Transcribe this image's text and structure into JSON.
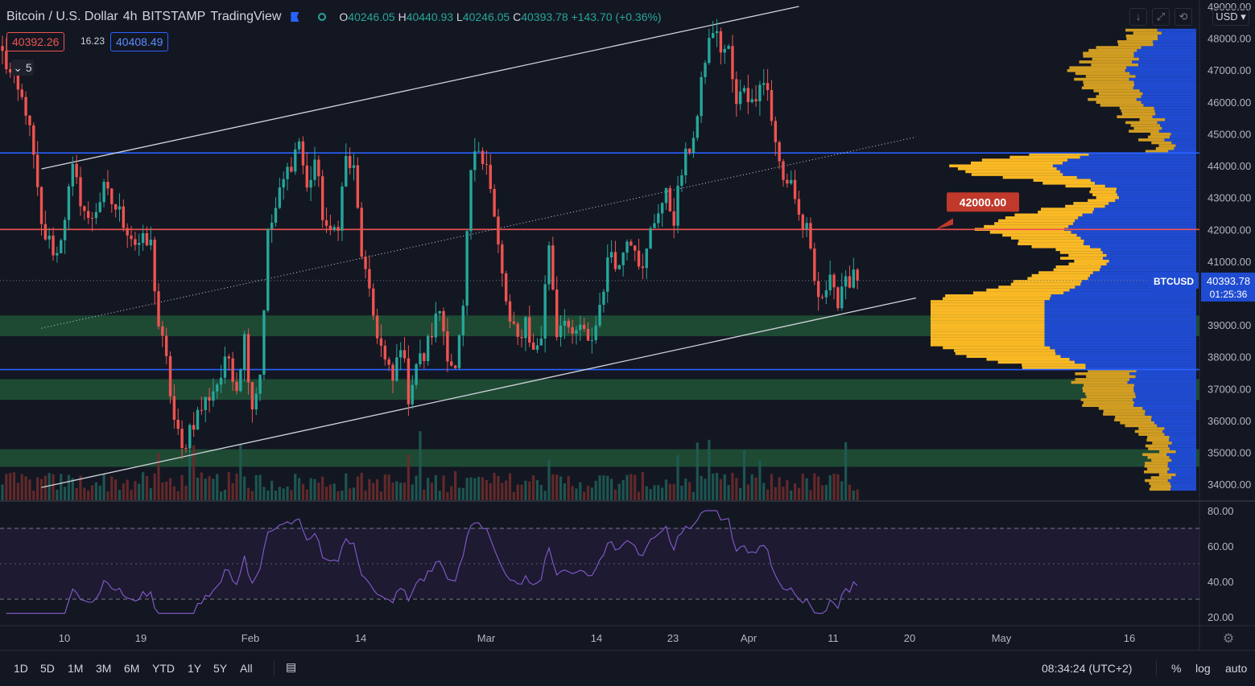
{
  "header": {
    "symbol": "Bitcoin / U.S. Dollar",
    "interval": "4h",
    "exchange": "BITSTAMP",
    "source": "TradingView",
    "ohlc": {
      "o_label": "O",
      "o": "40246.05",
      "h_label": "H",
      "h": "40440.93",
      "l_label": "L",
      "l": "40246.05",
      "c_label": "C",
      "c": "40393.78",
      "change": "+143.70 (+0.36%)"
    },
    "sell_price": "40392.26",
    "spread": "16.23",
    "buy_price": "40408.49",
    "collapse_count": "5"
  },
  "toolbar": {
    "currency": "USD",
    "icons": [
      "arrow-down-icon",
      "maximize-icon",
      "settings-icon"
    ]
  },
  "bottom_bar": {
    "ranges": [
      "1D",
      "5D",
      "1M",
      "3M",
      "6M",
      "YTD",
      "1Y",
      "5Y",
      "All"
    ],
    "clock": "08:34:24 (UTC+2)",
    "percent_label": "%",
    "log_label": "log",
    "auto_label": "auto"
  },
  "chart_data": [
    {
      "type": "candlestick",
      "ylim": [
        33500,
        49000
      ],
      "y_ticks": [
        34000,
        35000,
        36000,
        37000,
        38000,
        39000,
        40000,
        41000,
        42000,
        43000,
        44000,
        45000,
        46000,
        47000,
        48000,
        49000
      ],
      "y_tick_labels": [
        "34000.00",
        "35000.00",
        "36000.00",
        "37000.00",
        "38000.00",
        "39000.00",
        "40000.00",
        "41000.00",
        "42000.00",
        "43000.00",
        "44000.00",
        "45000.00",
        "46000.00",
        "47000.00",
        "48000.00",
        "49000.00"
      ],
      "x_tick_labels": [
        "10",
        "19",
        "Feb",
        "14",
        "Mar",
        "14",
        "23",
        "Apr",
        "11",
        "20",
        "May",
        "16"
      ],
      "path_anchors": [
        [
          0,
          47500
        ],
        [
          3,
          46500
        ],
        [
          6,
          45800
        ],
        [
          8,
          44200
        ],
        [
          10,
          42000
        ],
        [
          14,
          41200
        ],
        [
          18,
          43800
        ],
        [
          22,
          42200
        ],
        [
          26,
          43200
        ],
        [
          30,
          42500
        ],
        [
          34,
          41600
        ],
        [
          38,
          41500
        ],
        [
          40,
          39000
        ],
        [
          42,
          37800
        ],
        [
          44,
          36000
        ],
        [
          46,
          35000
        ],
        [
          48,
          35800
        ],
        [
          52,
          36600
        ],
        [
          56,
          37400
        ],
        [
          58,
          38000
        ],
        [
          60,
          37100
        ],
        [
          62,
          38600
        ],
        [
          64,
          36500
        ],
        [
          66,
          37500
        ],
        [
          68,
          41800
        ],
        [
          72,
          43500
        ],
        [
          76,
          44800
        ],
        [
          78,
          43200
        ],
        [
          80,
          44200
        ],
        [
          82,
          42500
        ],
        [
          84,
          41700
        ],
        [
          86,
          42300
        ],
        [
          88,
          44200
        ],
        [
          90,
          43800
        ],
        [
          92,
          41300
        ],
        [
          94,
          39800
        ],
        [
          96,
          38800
        ],
        [
          98,
          37800
        ],
        [
          100,
          37200
        ],
        [
          102,
          38500
        ],
        [
          104,
          36800
        ],
        [
          106,
          37800
        ],
        [
          108,
          38000
        ],
        [
          110,
          38800
        ],
        [
          112,
          39500
        ],
        [
          114,
          38200
        ],
        [
          116,
          37500
        ],
        [
          118,
          39400
        ],
        [
          120,
          43800
        ],
        [
          122,
          44600
        ],
        [
          124,
          44200
        ],
        [
          126,
          42300
        ],
        [
          128,
          40500
        ],
        [
          130,
          39000
        ],
        [
          132,
          38500
        ],
        [
          134,
          39200
        ],
        [
          136,
          38100
        ],
        [
          138,
          38700
        ],
        [
          140,
          41600
        ],
        [
          142,
          38800
        ],
        [
          144,
          39400
        ],
        [
          146,
          38400
        ],
        [
          148,
          39000
        ],
        [
          150,
          38300
        ],
        [
          152,
          39000
        ],
        [
          154,
          40300
        ],
        [
          156,
          41400
        ],
        [
          158,
          40800
        ],
        [
          160,
          41900
        ],
        [
          162,
          41600
        ],
        [
          164,
          40600
        ],
        [
          166,
          41900
        ],
        [
          168,
          42700
        ],
        [
          170,
          43000
        ],
        [
          172,
          42400
        ],
        [
          174,
          43800
        ],
        [
          176,
          44600
        ],
        [
          178,
          45500
        ],
        [
          180,
          47400
        ],
        [
          182,
          48300
        ],
        [
          184,
          47700
        ],
        [
          186,
          47600
        ],
        [
          188,
          45800
        ],
        [
          190,
          46600
        ],
        [
          192,
          45900
        ],
        [
          194,
          46800
        ],
        [
          196,
          46400
        ],
        [
          198,
          44600
        ],
        [
          200,
          43500
        ],
        [
          202,
          43600
        ],
        [
          204,
          42400
        ],
        [
          206,
          41900
        ],
        [
          208,
          40300
        ],
        [
          210,
          39600
        ],
        [
          212,
          40900
        ],
        [
          214,
          39600
        ],
        [
          216,
          40200
        ],
        [
          218,
          40800
        ],
        [
          219,
          40393.78
        ]
      ],
      "last_price": "40393.78",
      "countdown": "01:25:36",
      "symbol_tag": "BTCUSD",
      "horizontal_levels": [
        {
          "price": 44400,
          "color": "#2962ff"
        },
        {
          "price": 42000,
          "color": "#ef5350",
          "label": "42000.00"
        },
        {
          "price": 37600,
          "color": "#2962ff"
        }
      ],
      "zones": [
        {
          "from": 38650,
          "to": 39300,
          "color": "#1e4a34"
        },
        {
          "from": 36650,
          "to": 37300,
          "color": "#1e4a34"
        },
        {
          "from": 34550,
          "to": 35100,
          "color": "#1e4a34"
        }
      ],
      "trendlines": [
        {
          "p1": [
            10,
            43900
          ],
          "p2": [
            204,
            49000
          ],
          "style": "solid"
        },
        {
          "p1": [
            10,
            38900
          ],
          "p2": [
            234,
            44900
          ],
          "style": "dotted"
        },
        {
          "p1": [
            10,
            33900
          ],
          "p2": [
            234,
            39850
          ],
          "style": "solid"
        }
      ],
      "volume_profile": {
        "value_area_high": 44400,
        "value_area_low": 37600,
        "poc": 39000
      },
      "colors": {
        "up": "#26a69a",
        "down": "#ef5350",
        "profile_in": "#f9b925",
        "profile_out": "#d19d22",
        "profile_blue": "#1f4bd1"
      }
    },
    {
      "type": "line",
      "ylim": [
        15,
        85
      ],
      "y_ticks": [
        20,
        40,
        60,
        80
      ],
      "y_tick_labels": [
        "20.00",
        "40.00",
        "60.00",
        "80.00"
      ],
      "band": [
        30,
        70
      ],
      "midline": 50,
      "color": "#7e57c2"
    }
  ]
}
